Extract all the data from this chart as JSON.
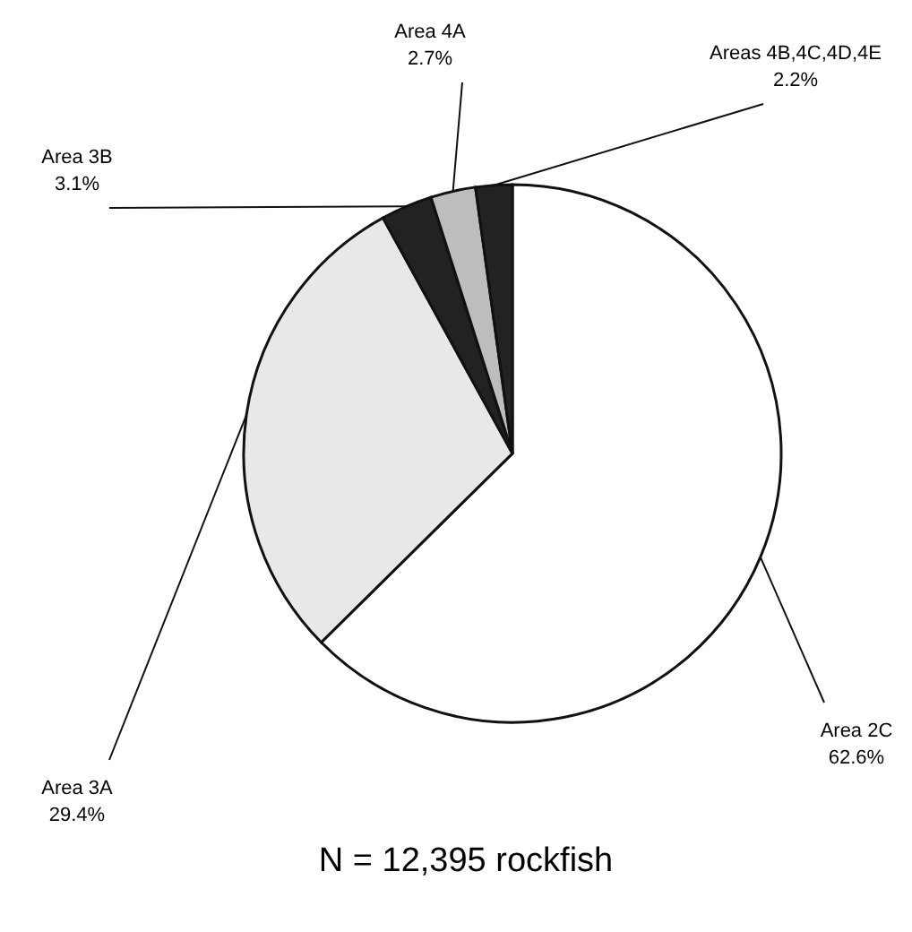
{
  "chart_data": {
    "type": "pie",
    "categories": [
      "Area 2C",
      "Area 3A",
      "Area 3B",
      "Area 4A",
      "Areas 4B,4C,4D,4E"
    ],
    "values": [
      62.6,
      29.4,
      3.1,
      2.7,
      2.2
    ],
    "colors": [
      "#ffffff",
      "#e8e8e8",
      "#222222",
      "#bdbdbd",
      "#222222"
    ],
    "value_labels": [
      "62.6%",
      "29.4%",
      "3.1%",
      "2.7%",
      "2.2%"
    ],
    "annotations": [
      "N = 12,395 rockfish"
    ]
  }
}
